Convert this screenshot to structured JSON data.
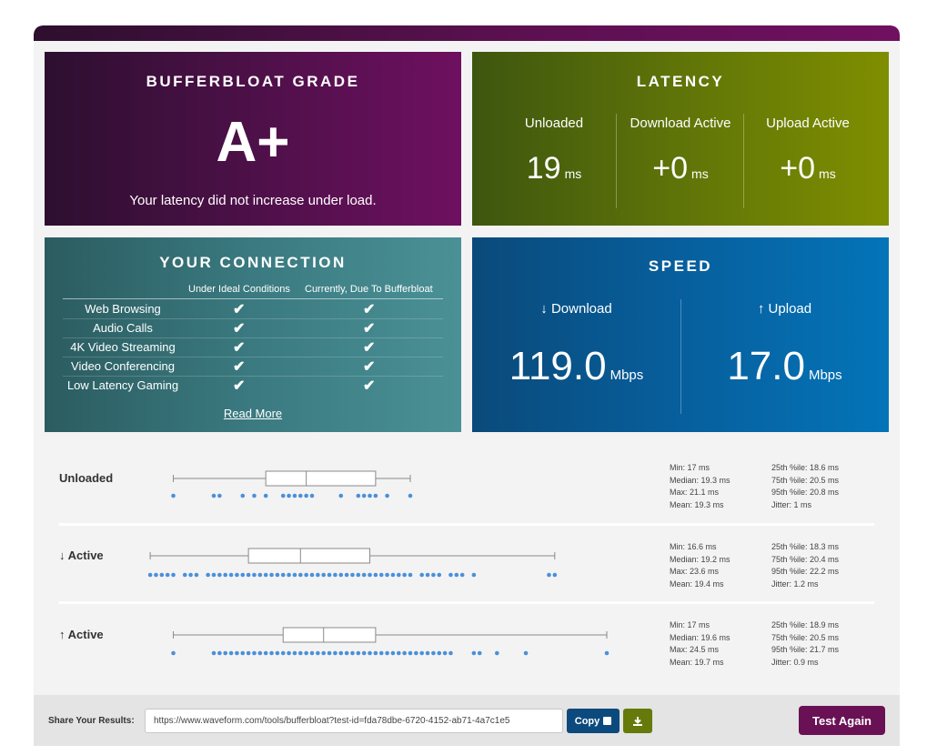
{
  "grade": {
    "title": "BUFFERBLOAT GRADE",
    "letter": "A+",
    "description": "Your latency did not increase under load."
  },
  "latency": {
    "title": "LATENCY",
    "cols": [
      {
        "label": "Unloaded",
        "value": "19",
        "unit": "ms"
      },
      {
        "label": "Download Active",
        "value": "+0",
        "unit": "ms"
      },
      {
        "label": "Upload Active",
        "value": "+0",
        "unit": "ms"
      }
    ]
  },
  "connection": {
    "title": "YOUR CONNECTION",
    "col_ideal": "Under Ideal Conditions",
    "col_current": "Currently, Due To Bufferbloat",
    "rows": [
      {
        "name": "Web Browsing",
        "ideal": "✔",
        "current": "✔"
      },
      {
        "name": "Audio Calls",
        "ideal": "✔",
        "current": "✔"
      },
      {
        "name": "4K Video Streaming",
        "ideal": "✔",
        "current": "✔"
      },
      {
        "name": "Video Conferencing",
        "ideal": "✔",
        "current": "✔"
      },
      {
        "name": "Low Latency Gaming",
        "ideal": "✔",
        "current": "✔"
      }
    ],
    "read_more": "Read More"
  },
  "speed": {
    "title": "SPEED",
    "download": {
      "label": "↓ Download",
      "value": "119.0",
      "unit": "Mbps"
    },
    "upload": {
      "label": "↑ Upload",
      "value": "17.0",
      "unit": "Mbps"
    }
  },
  "stats": [
    {
      "label": "Unloaded",
      "col1": [
        "Min: 17 ms",
        "Median: 19.3 ms",
        "Max: 21.1 ms",
        "Mean: 19.3 ms"
      ],
      "col2": [
        "25th %ile: 18.6 ms",
        "75th %ile: 20.5 ms",
        "95th %ile: 20.8 ms",
        "Jitter: 1 ms"
      ],
      "box": {
        "min": 17,
        "q1": 18.6,
        "median": 19.3,
        "q3": 20.5,
        "max": 21.1
      },
      "points": [
        17,
        17.7,
        17.8,
        18.2,
        18.4,
        18.6,
        18.9,
        19.0,
        19.1,
        19.2,
        19.3,
        19.4,
        19.9,
        20.2,
        20.3,
        20.4,
        20.5,
        20.7,
        21.1
      ]
    },
    {
      "label": "↓ Active",
      "col1": [
        "Min: 16.6 ms",
        "Median: 19.2 ms",
        "Max: 23.6 ms",
        "Mean: 19.4 ms"
      ],
      "col2": [
        "25th %ile: 18.3 ms",
        "75th %ile: 20.4 ms",
        "95th %ile: 22.2 ms",
        "Jitter: 1.2 ms"
      ],
      "box": {
        "min": 16.6,
        "q1": 18.3,
        "median": 19.2,
        "q3": 20.4,
        "max": 23.6
      },
      "points": [
        16.6,
        16.7,
        16.8,
        16.9,
        17.0,
        17.2,
        17.3,
        17.4,
        17.6,
        17.7,
        17.8,
        17.9,
        18.0,
        18.1,
        18.2,
        18.3,
        18.4,
        18.5,
        18.6,
        18.7,
        18.8,
        18.9,
        19.0,
        19.1,
        19.2,
        19.3,
        19.4,
        19.5,
        19.6,
        19.7,
        19.8,
        19.9,
        20.0,
        20.1,
        20.2,
        20.3,
        20.4,
        20.5,
        20.6,
        20.7,
        20.8,
        20.9,
        21.0,
        21.1,
        21.3,
        21.4,
        21.5,
        21.6,
        21.8,
        21.9,
        22.0,
        22.2,
        23.5,
        23.6
      ]
    },
    {
      "label": "↑ Active",
      "col1": [
        "Min: 17 ms",
        "Median: 19.6 ms",
        "Max: 24.5 ms",
        "Mean: 19.7 ms"
      ],
      "col2": [
        "25th %ile: 18.9 ms",
        "75th %ile: 20.5 ms",
        "95th %ile: 21.7 ms",
        "Jitter: 0.9 ms"
      ],
      "box": {
        "min": 17,
        "q1": 18.9,
        "median": 19.6,
        "q3": 20.5,
        "max": 24.5
      },
      "points": [
        17.0,
        17.7,
        17.8,
        17.9,
        18.0,
        18.1,
        18.2,
        18.3,
        18.4,
        18.5,
        18.6,
        18.7,
        18.8,
        18.9,
        19.0,
        19.1,
        19.2,
        19.3,
        19.4,
        19.5,
        19.6,
        19.7,
        19.8,
        19.9,
        20.0,
        20.1,
        20.2,
        20.3,
        20.4,
        20.5,
        20.6,
        20.7,
        20.8,
        20.9,
        21.0,
        21.1,
        21.2,
        21.3,
        21.4,
        21.5,
        21.6,
        21.7,
        21.8,
        22.2,
        22.3,
        22.6,
        23.1,
        24.5
      ]
    }
  ],
  "share": {
    "label": "Share Your Results:",
    "url": "https://www.waveform.com/tools/bufferbloat?test-id=fda78dbe-6720-4152-ab71-4a7c1e5",
    "copy_label": "Copy",
    "download_icon": "download-icon",
    "test_again_label": "Test Again"
  },
  "colors": {
    "plot_point": "#4a90d9",
    "box_stroke": "#8a8a8a"
  }
}
